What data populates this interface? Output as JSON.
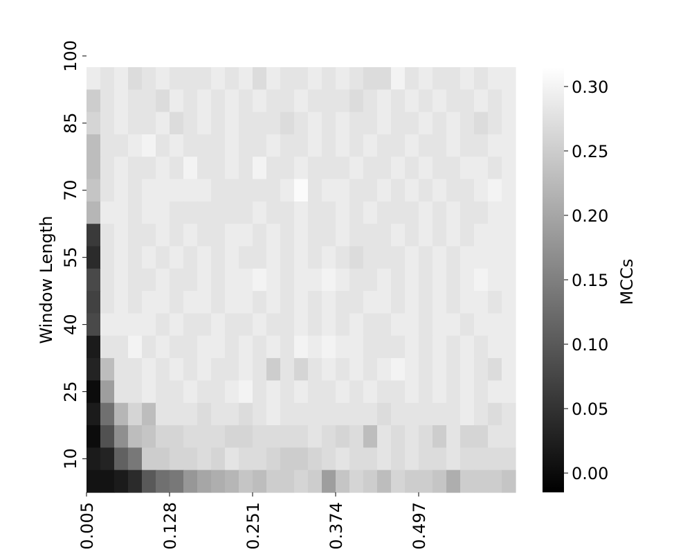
{
  "chart_data": {
    "type": "heatmap",
    "title": "",
    "xlabel": "",
    "ylabel": "Window Length",
    "colorbar": {
      "label": "MCCs",
      "ticks": [
        "0.00",
        "0.05",
        "0.10",
        "0.15",
        "0.20",
        "0.25",
        "0.30"
      ],
      "range": [
        -0.015,
        0.315
      ],
      "colormap": "gray"
    },
    "x_tick_labels": [
      "0.005",
      "0.128",
      "0.251",
      "0.374",
      "0.497"
    ],
    "y_tick_labels": [
      "10",
      "25",
      "40",
      "55",
      "70",
      "85",
      "100"
    ],
    "x_range": [
      0.005,
      0.605
    ],
    "y_range": [
      10,
      100
    ],
    "n_cols": 31,
    "n_rows": 19,
    "rows_from_top_note": "row 0 = window length 100, last row = window length 5",
    "z": [
      [
        0.29,
        0.28,
        0.29,
        0.27,
        0.28,
        0.29,
        0.28,
        0.28,
        0.28,
        0.29,
        0.28,
        0.29,
        0.27,
        0.29,
        0.28,
        0.28,
        0.29,
        0.28,
        0.29,
        0.28,
        0.27,
        0.27,
        0.3,
        0.28,
        0.29,
        0.28,
        0.28,
        0.29,
        0.28,
        0.29,
        0.29
      ],
      [
        0.25,
        0.28,
        0.29,
        0.28,
        0.28,
        0.27,
        0.29,
        0.28,
        0.29,
        0.28,
        0.29,
        0.28,
        0.29,
        0.28,
        0.28,
        0.29,
        0.28,
        0.28,
        0.28,
        0.27,
        0.28,
        0.29,
        0.28,
        0.29,
        0.28,
        0.29,
        0.28,
        0.28,
        0.29,
        0.28,
        0.29
      ],
      [
        0.26,
        0.28,
        0.29,
        0.28,
        0.28,
        0.29,
        0.27,
        0.28,
        0.29,
        0.28,
        0.29,
        0.28,
        0.28,
        0.28,
        0.27,
        0.28,
        0.29,
        0.28,
        0.29,
        0.28,
        0.28,
        0.29,
        0.28,
        0.28,
        0.29,
        0.28,
        0.29,
        0.28,
        0.27,
        0.28,
        0.29
      ],
      [
        0.23,
        0.28,
        0.28,
        0.29,
        0.3,
        0.28,
        0.29,
        0.28,
        0.28,
        0.28,
        0.29,
        0.28,
        0.28,
        0.29,
        0.28,
        0.28,
        0.29,
        0.28,
        0.29,
        0.28,
        0.29,
        0.28,
        0.28,
        0.29,
        0.28,
        0.28,
        0.29,
        0.28,
        0.28,
        0.29,
        0.29
      ],
      [
        0.23,
        0.28,
        0.29,
        0.28,
        0.28,
        0.29,
        0.28,
        0.3,
        0.28,
        0.28,
        0.29,
        0.28,
        0.3,
        0.28,
        0.28,
        0.29,
        0.28,
        0.28,
        0.28,
        0.29,
        0.28,
        0.28,
        0.29,
        0.28,
        0.29,
        0.28,
        0.28,
        0.29,
        0.29,
        0.28,
        0.29
      ],
      [
        0.24,
        0.28,
        0.29,
        0.28,
        0.29,
        0.29,
        0.29,
        0.29,
        0.29,
        0.28,
        0.28,
        0.28,
        0.28,
        0.28,
        0.29,
        0.31,
        0.28,
        0.29,
        0.29,
        0.28,
        0.28,
        0.29,
        0.28,
        0.29,
        0.28,
        0.29,
        0.28,
        0.28,
        0.29,
        0.3,
        0.29
      ],
      [
        0.22,
        0.29,
        0.29,
        0.28,
        0.29,
        0.29,
        0.28,
        0.28,
        0.28,
        0.28,
        0.28,
        0.28,
        0.29,
        0.28,
        0.28,
        0.29,
        0.28,
        0.28,
        0.29,
        0.28,
        0.29,
        0.28,
        0.28,
        0.28,
        0.29,
        0.28,
        0.29,
        0.28,
        0.28,
        0.29,
        0.29
      ],
      [
        0.06,
        0.28,
        0.29,
        0.28,
        0.28,
        0.29,
        0.28,
        0.29,
        0.28,
        0.28,
        0.29,
        0.29,
        0.28,
        0.29,
        0.28,
        0.29,
        0.28,
        0.28,
        0.29,
        0.28,
        0.28,
        0.28,
        0.29,
        0.28,
        0.29,
        0.28,
        0.29,
        0.28,
        0.29,
        0.29,
        0.29
      ],
      [
        0.04,
        0.28,
        0.29,
        0.28,
        0.29,
        0.28,
        0.29,
        0.28,
        0.29,
        0.28,
        0.29,
        0.28,
        0.28,
        0.29,
        0.28,
        0.29,
        0.28,
        0.29,
        0.28,
        0.27,
        0.28,
        0.28,
        0.28,
        0.29,
        0.28,
        0.29,
        0.28,
        0.29,
        0.29,
        0.29,
        0.29
      ],
      [
        0.08,
        0.28,
        0.29,
        0.28,
        0.28,
        0.29,
        0.28,
        0.28,
        0.29,
        0.28,
        0.29,
        0.29,
        0.3,
        0.29,
        0.28,
        0.29,
        0.29,
        0.3,
        0.29,
        0.28,
        0.28,
        0.29,
        0.28,
        0.29,
        0.28,
        0.29,
        0.28,
        0.29,
        0.3,
        0.29,
        0.29
      ],
      [
        0.07,
        0.28,
        0.29,
        0.28,
        0.29,
        0.29,
        0.28,
        0.29,
        0.29,
        0.28,
        0.29,
        0.29,
        0.28,
        0.29,
        0.28,
        0.29,
        0.28,
        0.29,
        0.28,
        0.28,
        0.29,
        0.29,
        0.28,
        0.29,
        0.28,
        0.29,
        0.28,
        0.29,
        0.29,
        0.28,
        0.29
      ],
      [
        0.08,
        0.29,
        0.29,
        0.29,
        0.29,
        0.28,
        0.29,
        0.28,
        0.28,
        0.29,
        0.28,
        0.28,
        0.29,
        0.28,
        0.28,
        0.29,
        0.28,
        0.29,
        0.28,
        0.29,
        0.28,
        0.28,
        0.29,
        0.29,
        0.28,
        0.29,
        0.29,
        0.28,
        0.29,
        0.29,
        0.29
      ],
      [
        0.02,
        0.28,
        0.28,
        0.3,
        0.28,
        0.29,
        0.28,
        0.28,
        0.29,
        0.29,
        0.28,
        0.29,
        0.28,
        0.29,
        0.28,
        0.3,
        0.29,
        0.3,
        0.29,
        0.29,
        0.28,
        0.28,
        0.28,
        0.29,
        0.28,
        0.29,
        0.28,
        0.29,
        0.28,
        0.29,
        0.29
      ],
      [
        0.03,
        0.23,
        0.28,
        0.28,
        0.29,
        0.28,
        0.29,
        0.28,
        0.29,
        0.28,
        0.28,
        0.29,
        0.28,
        0.25,
        0.28,
        0.26,
        0.28,
        0.29,
        0.28,
        0.29,
        0.28,
        0.29,
        0.3,
        0.29,
        0.28,
        0.29,
        0.28,
        0.29,
        0.28,
        0.27,
        0.29
      ],
      [
        0.0,
        0.19,
        0.28,
        0.28,
        0.29,
        0.28,
        0.28,
        0.29,
        0.28,
        0.28,
        0.29,
        0.3,
        0.28,
        0.29,
        0.28,
        0.29,
        0.28,
        0.28,
        0.29,
        0.28,
        0.29,
        0.28,
        0.28,
        0.29,
        0.28,
        0.29,
        0.28,
        0.29,
        0.28,
        0.29,
        0.29
      ],
      [
        0.02,
        0.13,
        0.22,
        0.26,
        0.23,
        0.28,
        0.28,
        0.28,
        0.27,
        0.28,
        0.28,
        0.27,
        0.28,
        0.29,
        0.28,
        0.28,
        0.28,
        0.28,
        0.28,
        0.28,
        0.28,
        0.27,
        0.28,
        0.28,
        0.28,
        0.28,
        0.28,
        0.29,
        0.28,
        0.27,
        0.28
      ],
      [
        0.0,
        0.09,
        0.17,
        0.23,
        0.24,
        0.26,
        0.26,
        0.27,
        0.27,
        0.27,
        0.26,
        0.26,
        0.27,
        0.27,
        0.27,
        0.27,
        0.28,
        0.27,
        0.26,
        0.27,
        0.23,
        0.28,
        0.27,
        0.28,
        0.27,
        0.25,
        0.28,
        0.26,
        0.26,
        0.28,
        0.28
      ],
      [
        0.02,
        0.03,
        0.11,
        0.14,
        0.25,
        0.25,
        0.26,
        0.26,
        0.27,
        0.26,
        0.28,
        0.27,
        0.27,
        0.26,
        0.25,
        0.25,
        0.26,
        0.27,
        0.28,
        0.27,
        0.27,
        0.28,
        0.27,
        0.28,
        0.27,
        0.27,
        0.28,
        0.27,
        0.27,
        0.27,
        0.27
      ],
      [
        0.01,
        0.01,
        0.02,
        0.04,
        0.1,
        0.13,
        0.14,
        0.18,
        0.2,
        0.21,
        0.22,
        0.24,
        0.23,
        0.25,
        0.25,
        0.26,
        0.25,
        0.19,
        0.24,
        0.26,
        0.25,
        0.23,
        0.26,
        0.25,
        0.25,
        0.24,
        0.21,
        0.25,
        0.25,
        0.25,
        0.24
      ]
    ]
  }
}
